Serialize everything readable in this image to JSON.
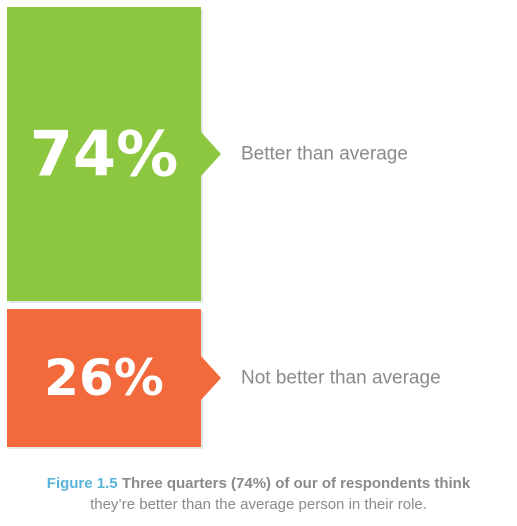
{
  "chart_data": {
    "type": "bar",
    "categories": [
      "Better than average",
      "Not better than average"
    ],
    "values": [
      74,
      26
    ],
    "value_labels": [
      "74%",
      "26%"
    ],
    "colors": [
      "#8dc63f",
      "#f26a3c"
    ]
  },
  "caption": {
    "figure_label": "Figure 1.5",
    "bold_text": "Three quarters (74%) of our of respondents think",
    "rest_text": "they’re better than the average person in their role."
  }
}
